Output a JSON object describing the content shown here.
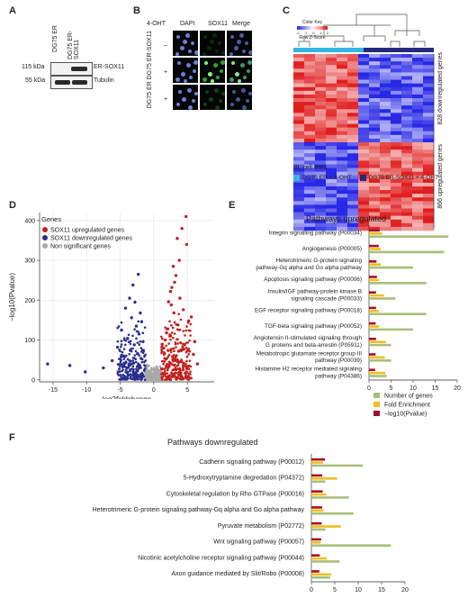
{
  "panel_a": {
    "label": "A",
    "lanes": [
      "DG75 ER",
      "DG75 ER-SOX11"
    ],
    "rows": [
      {
        "kda": "115 kDa",
        "name": "ER-SOX11"
      },
      {
        "kda": "55 kDa",
        "name": "Tubulin"
      }
    ]
  },
  "panel_b": {
    "label": "B",
    "treatment": "4-OHT",
    "columns": [
      "DAPI",
      "SOX11",
      "Merge"
    ],
    "column_colors": [
      "#6a7fd8",
      "#2fa52f",
      "#2fa52f"
    ],
    "row_group_label": "DG75 ER DG75 ER-SOX11",
    "rows": [
      "–",
      "+",
      "+"
    ]
  },
  "panel_c": {
    "label": "C",
    "color_key": {
      "title": "Color Key",
      "ticks": [
        "-2",
        "-1",
        "0",
        "1",
        "2"
      ],
      "subtitle": "Row Z-Score"
    },
    "clusters": [
      {
        "count": "828",
        "label": "downregulated genes"
      },
      {
        "count": "866",
        "label": "upregulated genes"
      }
    ],
    "legend_title": "BL cell lines",
    "legend": [
      {
        "label": "DG75 ER + 4-OHT",
        "color": "#35b4e6"
      },
      {
        "label": "DG75 ER-SOX11 + 4-OHT",
        "color": "#242a7c"
      }
    ]
  },
  "panel_d": {
    "label": "D",
    "legend_title": "Genes",
    "legend": [
      {
        "label": "SOX11 upregulated genes",
        "color": "#c0201c"
      },
      {
        "label": "SOX11 downregulated genes",
        "color": "#2a2f8e"
      },
      {
        "label": "Non significant genes",
        "color": "#a8a8a8"
      }
    ]
  },
  "panel_e": {
    "label": "E"
  },
  "panel_f": {
    "label": "F"
  },
  "chart_data": [
    {
      "type": "scatter",
      "title": "",
      "xlabel": "log2foldchange",
      "ylabel": "−log10(Pvalue)",
      "xlim": [
        -17,
        9
      ],
      "ylim": [
        -5,
        420
      ],
      "xticks": [
        "-15",
        "-10",
        "-5",
        "0",
        "5"
      ],
      "yticks": [
        "0",
        "100",
        "200",
        "300",
        "400"
      ],
      "grid": true,
      "series": [
        {
          "name": "SOX11 upregulated genes",
          "color": "#c0201c",
          "x": [
            4.8,
            4.2,
            3.5,
            4.9,
            3.8,
            2.9,
            3.3,
            3.1,
            2.7,
            2.5,
            3.9,
            2.2,
            2.6,
            4.4,
            3.0,
            5.6,
            5.2,
            3.6,
            2.1,
            1.9,
            2.4,
            1.7,
            6.1,
            4.6,
            1.5,
            3.7,
            5.9,
            2.8,
            1.8,
            4.1,
            6.5,
            2.3
          ],
          "y": [
            410,
            380,
            355,
            340,
            300,
            285,
            262,
            245,
            232,
            222,
            205,
            196,
            188,
            176,
            168,
            158,
            148,
            138,
            128,
            118,
            110,
            100,
            96,
            88,
            80,
            72,
            64,
            58,
            52,
            46,
            40,
            34
          ]
        },
        {
          "name": "SOX11 downregulated genes",
          "color": "#2a2f8e",
          "x": [
            -2.3,
            -3.1,
            -3.6,
            -2.8,
            -4.2,
            -2.0,
            -3.3,
            -1.8,
            -2.6,
            -4.8,
            -2.2,
            -3.9,
            -1.6,
            -2.9,
            -5.4,
            -3.5,
            -2.4,
            -4.5,
            -1.9,
            -6.2,
            -3.0,
            -2.1,
            -7.5,
            -12.5,
            -15.8,
            -10.2
          ],
          "y": [
            265,
            238,
            205,
            195,
            180,
            168,
            156,
            146,
            135,
            125,
            115,
            104,
            96,
            88,
            82,
            74,
            66,
            60,
            54,
            48,
            42,
            36,
            30,
            36,
            40,
            20
          ]
        },
        {
          "name": "Non significant genes",
          "color": "#a8a8a8",
          "x": [
            -0.6,
            -0.3,
            0.1,
            0.4,
            0.7,
            -0.9,
            0.9,
            -0.1,
            0.3,
            -0.5,
            0.6,
            -0.8,
            0.2,
            -0.2,
            0.5
          ],
          "y": [
            12,
            6,
            3,
            8,
            14,
            18,
            20,
            2,
            4,
            10,
            7,
            5,
            1,
            9,
            11
          ]
        }
      ]
    },
    {
      "type": "bar",
      "title": "Pathways upregulated",
      "xlabel": "",
      "ylabel": "",
      "xlim": [
        0,
        20
      ],
      "xticks": [
        "0",
        "5",
        "10",
        "15",
        "20"
      ],
      "categories": [
        "Integrin signalling pathway (P00034)",
        "Angiogenesis (P00005)",
        "Heterotrimeric G-protein signaling pathway-Gq alpha and Go alpha pathway",
        "Apoptosis signaling pathway (P00006)",
        "Insulin/IGF pathway-protein kinase B signaling cascade (P00033)",
        "EGF receptor signaling pathway (P00018)",
        "TGF-beta signaling pathway (P00052)",
        "Angiotensin II-stimulated signaling through G proteins and beta-arrestin (P05911)",
        "Metabotropic glutamate receptor group III pathway (P00039)",
        "Histamine H2 receptor mediated signaling pathway (P04386)"
      ],
      "series": [
        {
          "name": "Number of genes",
          "color": "#a8bf7a",
          "values": [
            18,
            17,
            10,
            13,
            6,
            13,
            10,
            5,
            5,
            4
          ]
        },
        {
          "name": "Fold Enrichment",
          "color": "#f0be1e",
          "values": [
            3.0,
            2.6,
            2.7,
            2.3,
            3.4,
            2.2,
            2.3,
            3.8,
            3.6,
            3.7
          ]
        },
        {
          "name": "−log10(Pvalue)",
          "color": "#a3102a",
          "values": [
            2.4,
            2.2,
            1.7,
            1.8,
            1.6,
            1.6,
            1.5,
            1.6,
            1.5,
            1.4
          ]
        }
      ]
    },
    {
      "type": "bar",
      "title": "Pathways downregulated",
      "xlabel": "",
      "ylabel": "",
      "xlim": [
        0,
        20
      ],
      "xticks": [
        "0",
        "5",
        "10",
        "15",
        "20"
      ],
      "categories": [
        "Cadherin signaling pathway (P00012)",
        "5-Hydroxytryptamine degredation (P04372)",
        "Cytoskeletal regulation by Rho GTPase (P00016)",
        "Heterotrimeric G-protein signaling pathway-Gq alpha and Go alpha pathway",
        "Pyruvate metabolism (P02772)",
        "Wnt signaling pathway (P00057)",
        "Nicotinic acetylcholine receptor signaling pathway (P00044)",
        "Axon guidance mediated by Slit/Robo (P00008)"
      ],
      "series": [
        {
          "name": "Number of genes",
          "color": "#a8bf7a",
          "values": [
            11,
            3,
            8,
            9,
            3,
            17,
            6,
            4
          ]
        },
        {
          "name": "Fold Enrichment",
          "color": "#f0be1e",
          "values": [
            2.5,
            5.5,
            3.2,
            2.6,
            6.3,
            2.0,
            3.3,
            4.2
          ]
        },
        {
          "name": "−log10(Pvalue)",
          "color": "#a3102a",
          "values": [
            2.9,
            2.3,
            2.4,
            2.3,
            2.2,
            2.1,
            1.8,
            1.7
          ]
        }
      ]
    }
  ]
}
